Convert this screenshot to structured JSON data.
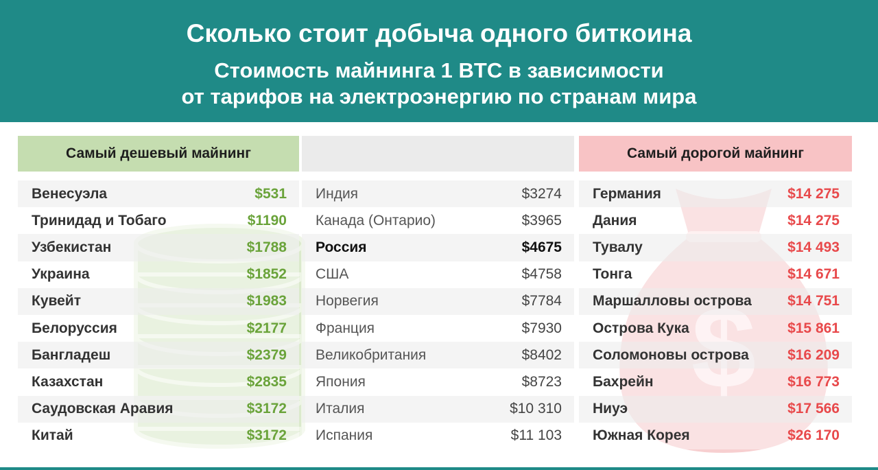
{
  "header": {
    "title": "Сколько стоит добыча одного биткоина",
    "subtitle_line1": "Стоимость майнинга 1 BTC в зависимости",
    "subtitle_line2": "от тарифов на электроэнергию по странам мира"
  },
  "colors": {
    "header_bg": "#1f8a87",
    "cheap": "#6aa33a",
    "expensive": "#e8494b",
    "cheap_header": "#c5ddb0",
    "expensive_header": "#f8c3c5"
  },
  "icons": {
    "left_decoration": "coin-stack-icon",
    "right_decoration": "money-bag-icon"
  },
  "cheap": {
    "heading": "Самый дешевый майнинг",
    "rows": [
      {
        "country": "Венесуэла",
        "cost": "$531"
      },
      {
        "country": "Тринидад и Тобаго",
        "cost": "$1190"
      },
      {
        "country": "Узбекистан",
        "cost": "$1788"
      },
      {
        "country": "Украина",
        "cost": "$1852"
      },
      {
        "country": "Кувейт",
        "cost": "$1983"
      },
      {
        "country": "Белоруссия",
        "cost": "$2177"
      },
      {
        "country": "Бангладеш",
        "cost": "$2379"
      },
      {
        "country": "Казахстан",
        "cost": "$2835"
      },
      {
        "country": "Саудовская Аравия",
        "cost": "$3172"
      },
      {
        "country": "Китай",
        "cost": "$3172"
      }
    ]
  },
  "middle": {
    "heading": "",
    "rows": [
      {
        "country": "Индия",
        "cost": "$3274"
      },
      {
        "country": "Канада (Онтарио)",
        "cost": "$3965"
      },
      {
        "country": "Россия",
        "cost": "$4675",
        "highlight": true
      },
      {
        "country": "США",
        "cost": "$4758"
      },
      {
        "country": "Норвегия",
        "cost": "$7784"
      },
      {
        "country": "Франция",
        "cost": "$7930"
      },
      {
        "country": "Великобритания",
        "cost": "$8402"
      },
      {
        "country": "Япония",
        "cost": "$8723"
      },
      {
        "country": "Италия",
        "cost": "$10 310"
      },
      {
        "country": "Испания",
        "cost": "$11 103"
      }
    ]
  },
  "expensive": {
    "heading": "Самый дорогой майнинг",
    "rows": [
      {
        "country": "Германия",
        "cost": "$14 275"
      },
      {
        "country": "Дания",
        "cost": "$14 275"
      },
      {
        "country": "Тувалу",
        "cost": "$14 493"
      },
      {
        "country": "Тонга",
        "cost": "$14 671"
      },
      {
        "country": "Маршалловы острова",
        "cost": "$14 751"
      },
      {
        "country": "Острова Кука",
        "cost": "$15 861"
      },
      {
        "country": "Соломоновы острова",
        "cost": "$16 209"
      },
      {
        "country": "Бахрейн",
        "cost": "$16 773"
      },
      {
        "country": "Ниуэ",
        "cost": "$17 566"
      },
      {
        "country": "Южная Корея",
        "cost": "$26 170"
      }
    ]
  }
}
